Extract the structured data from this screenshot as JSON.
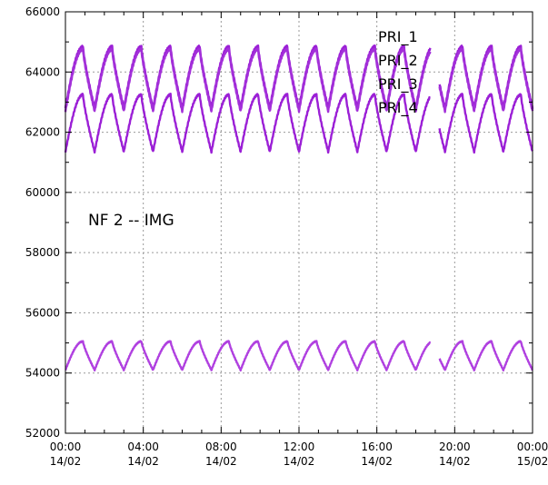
{
  "chart_data": {
    "type": "line",
    "title": "",
    "xlabel": "",
    "ylabel": "",
    "grid": true,
    "legend_placement": "top-right",
    "annotation": "NF 2 -- IMG",
    "xlim": [
      0,
      24
    ],
    "ylim": [
      52000,
      66000
    ],
    "x_ticks": [
      {
        "value": 0,
        "line1": "00:00",
        "line2": "14/02"
      },
      {
        "value": 4,
        "line1": "04:00",
        "line2": "14/02"
      },
      {
        "value": 8,
        "line1": "08:00",
        "line2": "14/02"
      },
      {
        "value": 12,
        "line1": "12:00",
        "line2": "14/02"
      },
      {
        "value": 16,
        "line1": "16:00",
        "line2": "14/02"
      },
      {
        "value": 20,
        "line1": "20:00",
        "line2": "14/02"
      },
      {
        "value": 24,
        "line1": "00:00",
        "line2": "15/02"
      }
    ],
    "y_ticks": [
      52000,
      54000,
      56000,
      58000,
      60000,
      62000,
      64000,
      66000
    ],
    "gaps": [
      [
        18.75,
        19.2
      ],
      [
        20.3,
        20.3
      ]
    ],
    "series": [
      {
        "name": "PRI_1",
        "color": "#9b1fd6",
        "period": 1.5,
        "phase": 0.0,
        "low": 62800,
        "high": 64850
      },
      {
        "name": "PRI_2",
        "color": "#a330d9",
        "period": 1.5,
        "phase": 0.0,
        "low": 62700,
        "high": 64750
      },
      {
        "name": "PRI_3",
        "color": "#9b1fd6",
        "period": 1.5,
        "phase": 0.0,
        "low": 61350,
        "high": 63250
      },
      {
        "name": "PRI_4",
        "color": "#b040e0",
        "period": 1.5,
        "phase": 0.0,
        "low": 54100,
        "high": 55050
      }
    ]
  }
}
